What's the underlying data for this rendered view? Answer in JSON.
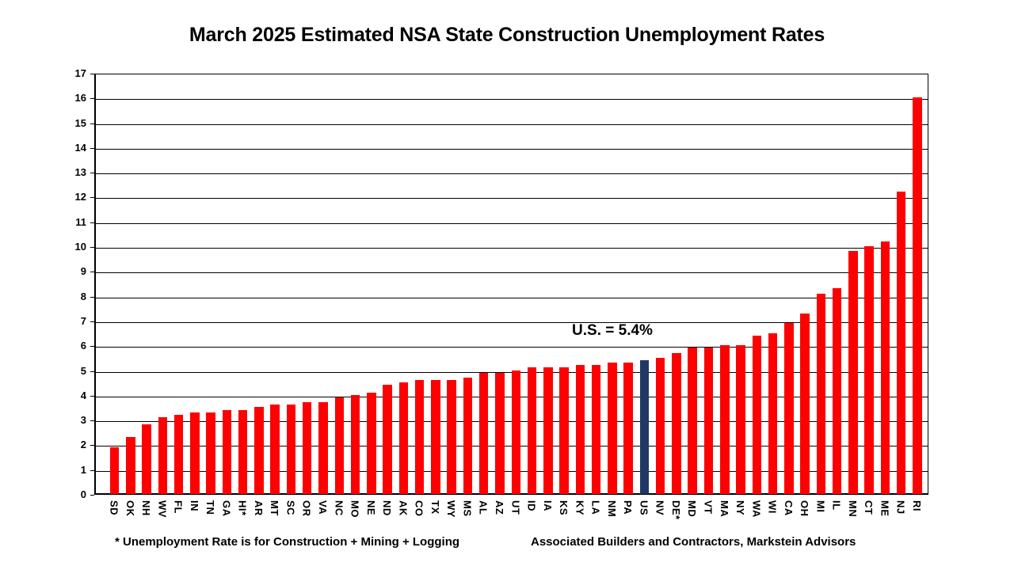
{
  "chart_data": {
    "type": "bar",
    "title": "March 2025 Estimated NSA State Construction Unemployment Rates",
    "categories": [
      "SD",
      "OK",
      "NH",
      "WV",
      "FL",
      "IN",
      "TN",
      "GA",
      "HI*",
      "AR",
      "MT",
      "SC",
      "OR",
      "VA",
      "NC",
      "MO",
      "NE",
      "ND",
      "AK",
      "CO",
      "TX",
      "WY",
      "MS",
      "AL",
      "AZ",
      "UT",
      "ID",
      "IA",
      "KS",
      "KY",
      "LA",
      "NM",
      "PA",
      "US",
      "NV",
      "DE*",
      "MD",
      "VT",
      "MA",
      "NY",
      "WA",
      "WI",
      "CA",
      "OH",
      "MI",
      "IL",
      "MN",
      "CT",
      "ME",
      "NJ",
      "RI"
    ],
    "values": [
      1.9,
      2.3,
      2.8,
      3.1,
      3.2,
      3.3,
      3.3,
      3.4,
      3.4,
      3.5,
      3.6,
      3.6,
      3.7,
      3.7,
      3.9,
      4.0,
      4.1,
      4.4,
      4.5,
      4.6,
      4.6,
      4.6,
      4.7,
      4.9,
      4.9,
      5.0,
      5.1,
      5.1,
      5.1,
      5.2,
      5.2,
      5.3,
      5.3,
      5.4,
      5.5,
      5.7,
      5.9,
      5.9,
      6.0,
      6.0,
      6.4,
      6.5,
      6.9,
      7.3,
      8.1,
      8.3,
      9.8,
      10.0,
      10.2,
      12.2,
      16.0
    ],
    "xlabel": "",
    "ylabel": "",
    "ylim": [
      0,
      17
    ],
    "ytick_interval": 1,
    "grid": true,
    "legend": "none",
    "bar_color": "#FF0000",
    "highlight_category": "US",
    "highlight_color": "#1F3864",
    "axis_color": "#000000",
    "annotation": {
      "text": "U.S. = 5.4%"
    },
    "footnote_left": "* Unemployment Rate is for Construction + Mining + Logging",
    "footnote_right": "Associated Builders and Contractors, Markstein Advisors"
  }
}
